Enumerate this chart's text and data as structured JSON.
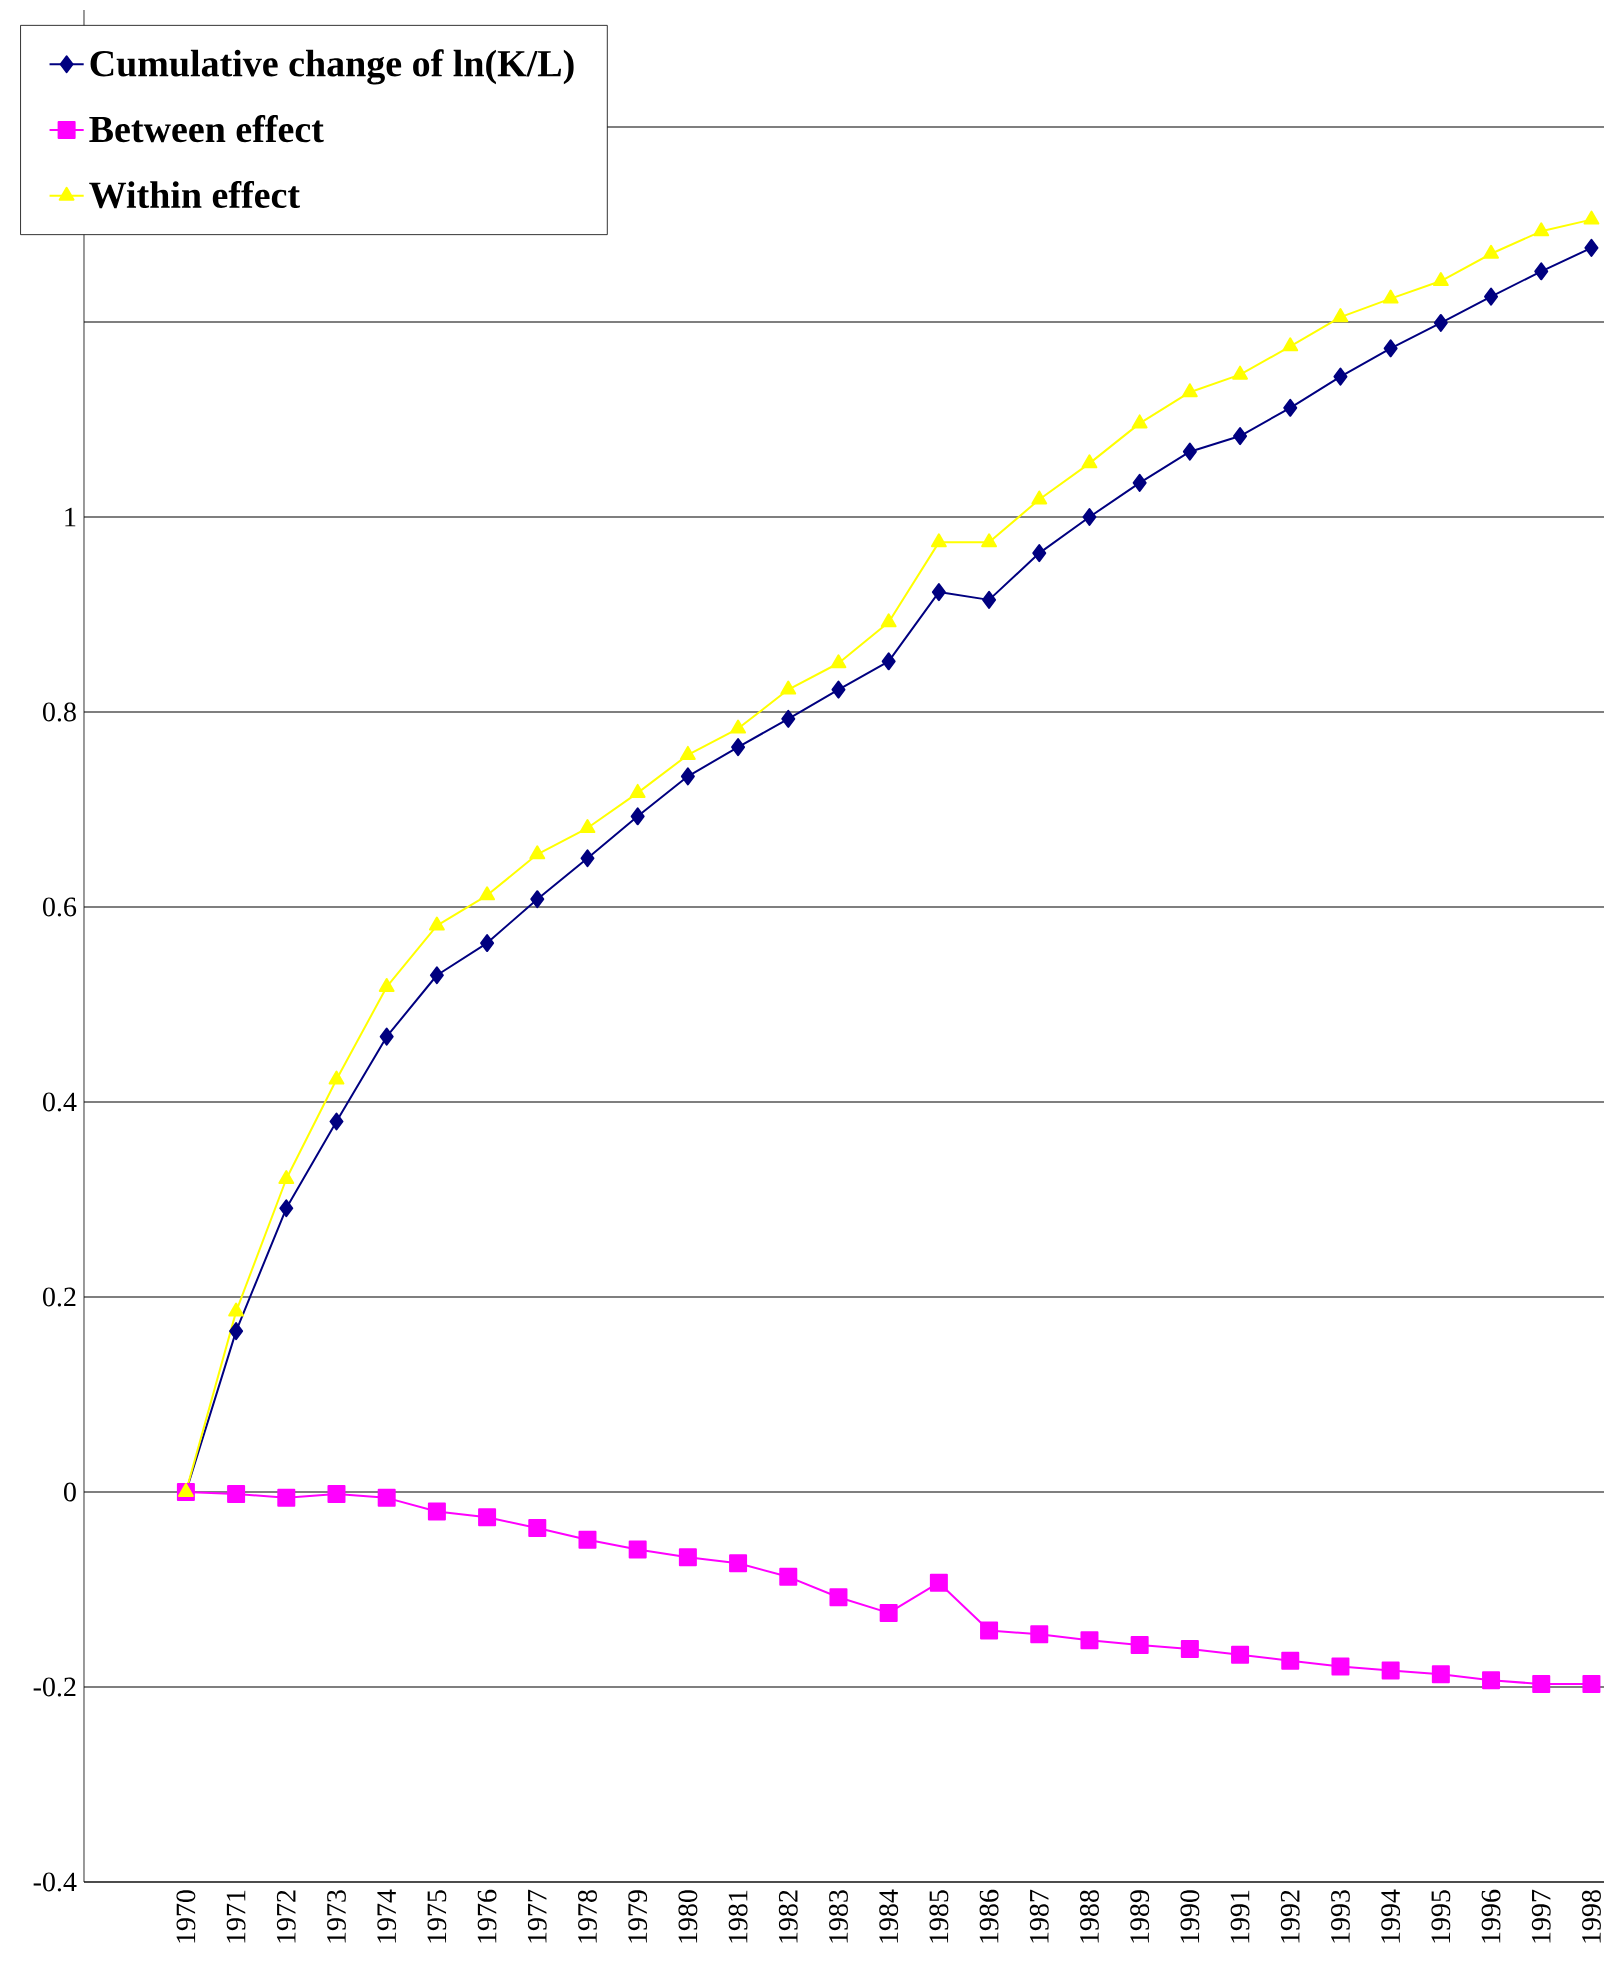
{
  "chart_data": {
    "type": "line",
    "categories": [
      "1970",
      "1971",
      "1972",
      "1973",
      "1974",
      "1975",
      "1976",
      "1977",
      "1978",
      "1979",
      "1980",
      "1981",
      "1982",
      "1983",
      "1984",
      "1985",
      "1986",
      "1987",
      "1988",
      "1989",
      "1990",
      "1991",
      "1992",
      "1993",
      "1994",
      "1995",
      "1996",
      "1997",
      "1998"
    ],
    "series": [
      {
        "name": "Cumulative change of ln(K/L)",
        "color": "#000080",
        "marker": "diamond",
        "values": [
          0,
          0.165,
          0.291,
          0.38,
          0.467,
          0.53,
          0.563,
          0.608,
          0.65,
          0.693,
          0.734,
          0.764,
          0.793,
          0.823,
          0.852,
          0.923,
          0.915,
          0.963,
          1.0,
          1.035,
          1.067,
          1.083,
          1.112,
          1.144,
          1.173,
          1.199,
          1.226,
          1.252,
          1.276
        ]
      },
      {
        "name": "Between effect",
        "color": "#ff00ff",
        "marker": "square",
        "values": [
          0,
          -0.002,
          -0.006,
          -0.002,
          -0.006,
          -0.02,
          -0.026,
          -0.037,
          -0.049,
          -0.059,
          -0.067,
          -0.073,
          -0.087,
          -0.108,
          -0.124,
          -0.093,
          -0.142,
          -0.146,
          -0.152,
          -0.157,
          -0.161,
          -0.167,
          -0.173,
          -0.179,
          -0.183,
          -0.187,
          -0.193,
          -0.197,
          -0.197
        ]
      },
      {
        "name": "Within effect",
        "color": "#ffff00",
        "marker": "triangle",
        "values": [
          0,
          0.185,
          0.321,
          0.423,
          0.518,
          0.581,
          0.612,
          0.654,
          0.681,
          0.717,
          0.756,
          0.783,
          0.823,
          0.85,
          0.892,
          0.974,
          0.974,
          1.018,
          1.055,
          1.096,
          1.128,
          1.146,
          1.175,
          1.205,
          1.224,
          1.242,
          1.27,
          1.293,
          1.305
        ]
      }
    ],
    "ylim": [
      -0.4,
      1.52
    ],
    "yticks": [
      -0.4,
      -0.2,
      0,
      0.2,
      0.4,
      0.6,
      0.8,
      1,
      {
        "value": 1.2,
        "label": null
      },
      {
        "value": 1.4,
        "label": null
      }
    ],
    "grid": "y",
    "legend": "top left",
    "line_style": "solid"
  }
}
